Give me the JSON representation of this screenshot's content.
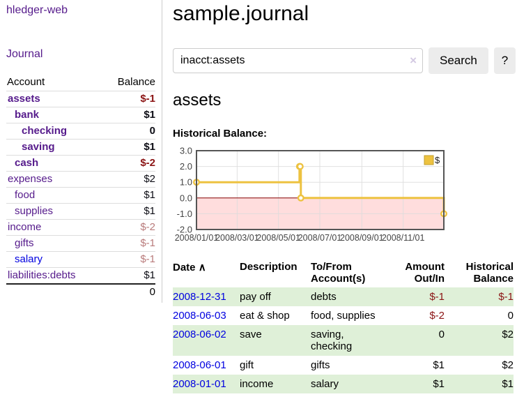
{
  "colors": {
    "link_purple": "#551a8b",
    "link_blue": "#0000e0",
    "negative_strong": "#8b1414",
    "negative_light": "#b97b7b",
    "row_stripe_green": "#dff0d8",
    "chart_gold": "#edc240",
    "chart_negative_fill": "#ffdddd",
    "chart_zero_line": "#8b0000"
  },
  "sidebar": {
    "app_title": "hledger-web",
    "journal_link": "Journal",
    "accounts": {
      "col_account": "Account",
      "col_balance": "Balance",
      "rows": [
        {
          "name": "assets",
          "balance": "$-1",
          "depth": 0,
          "bold": true,
          "neg": "strong"
        },
        {
          "name": "bank",
          "balance": "$1",
          "depth": 1,
          "bold": true,
          "neg": null
        },
        {
          "name": "checking",
          "balance": "0",
          "depth": 2,
          "bold": true,
          "neg": null
        },
        {
          "name": "saving",
          "balance": "$1",
          "depth": 2,
          "bold": true,
          "neg": null
        },
        {
          "name": "cash",
          "balance": "$-2",
          "depth": 1,
          "bold": true,
          "neg": "strong"
        },
        {
          "name": "expenses",
          "balance": "$2",
          "depth": 0,
          "bold": false,
          "neg": null
        },
        {
          "name": "food",
          "balance": "$1",
          "depth": 1,
          "bold": false,
          "neg": null
        },
        {
          "name": "supplies",
          "balance": "$1",
          "depth": 1,
          "bold": false,
          "neg": null
        },
        {
          "name": "income",
          "balance": "$-2",
          "depth": 0,
          "bold": false,
          "neg": "light"
        },
        {
          "name": "gifts",
          "balance": "$-1",
          "depth": 1,
          "bold": false,
          "neg": "light"
        },
        {
          "name": "salary",
          "balance": "$-1",
          "depth": 1,
          "bold": false,
          "neg": "light",
          "link_color": "#0000e0"
        },
        {
          "name": "liabilities:debts",
          "balance": "$1",
          "depth": 0,
          "bold": false,
          "neg": null
        }
      ],
      "total": "0"
    }
  },
  "main": {
    "title": "sample.journal",
    "search": {
      "value": "inacct:assets",
      "clear_icon": "×",
      "button": "Search",
      "help": "?"
    },
    "account_heading": "assets",
    "chart_title": "Historical Balance:"
  },
  "chart_data": {
    "type": "line",
    "step": true,
    "title": "Historical Balance",
    "series": [
      {
        "name": "$",
        "color": "#edc240",
        "points": [
          [
            "2008-01-01",
            1
          ],
          [
            "2008-06-01",
            2
          ],
          [
            "2008-06-02",
            2
          ],
          [
            "2008-06-03",
            0
          ],
          [
            "2008-12-31",
            -1
          ]
        ]
      }
    ],
    "x_range": [
      "2008-01-01",
      "2008-12-31"
    ],
    "ylim": [
      -2,
      3
    ],
    "yticks": [
      3.0,
      2.0,
      1.0,
      0.0,
      -1.0,
      -2.0
    ],
    "xticks": [
      "2008/01/01",
      "2008/03/01",
      "2008/05/01",
      "2008/07/01",
      "2008/09/01",
      "2008/11/01"
    ],
    "legend": {
      "label": "$",
      "position": "top-right"
    },
    "grid": true
  },
  "register": {
    "sort_icon": "∧",
    "headers": [
      "Date",
      "Description",
      "To/From Account(s)",
      "Amount Out/In",
      "Historical Balance"
    ],
    "rows": [
      {
        "date": "2008-12-31",
        "description": "pay off",
        "accounts": "debts",
        "amount": "$-1",
        "amount_neg": true,
        "balance": "$-1",
        "balance_neg": true,
        "shaded": true
      },
      {
        "date": "2008-06-03",
        "description": "eat & shop",
        "accounts": "food, supplies",
        "amount": "$-2",
        "amount_neg": true,
        "balance": "0",
        "balance_neg": false,
        "shaded": false
      },
      {
        "date": "2008-06-02",
        "description": "save",
        "accounts": "saving, checking",
        "amount": "0",
        "amount_neg": false,
        "balance": "$2",
        "balance_neg": false,
        "shaded": true
      },
      {
        "date": "2008-06-01",
        "description": "gift",
        "accounts": "gifts",
        "amount": "$1",
        "amount_neg": false,
        "balance": "$2",
        "balance_neg": false,
        "shaded": false
      },
      {
        "date": "2008-01-01",
        "description": "income",
        "accounts": "salary",
        "amount": "$1",
        "amount_neg": false,
        "balance": "$1",
        "balance_neg": false,
        "shaded": true
      }
    ]
  }
}
